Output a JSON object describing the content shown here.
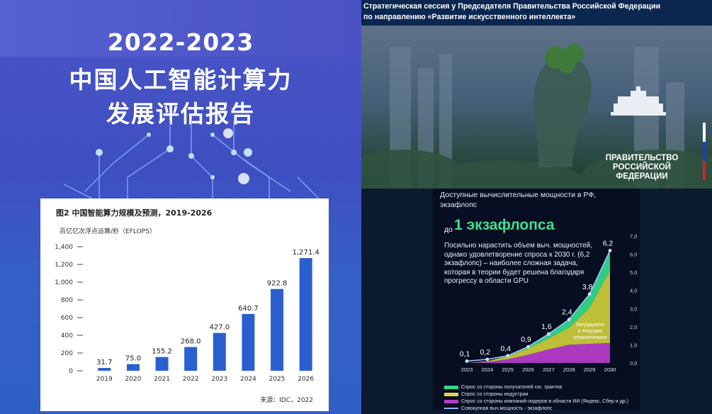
{
  "left_report": {
    "year": "2022-2023",
    "title_line1": "中国人工智能计算力",
    "title_line2": "发展评估报告",
    "figure_title": "图2  中国智能算力规模及预测，2019-2026",
    "unit": "百亿亿次浮点运算/秒（EFLOPS）",
    "source": "来源：IDC，2022"
  },
  "right_slide": {
    "header_line1": "Стратегическая сессия у Председателя Правительства Российской Федерации",
    "header_line2": "по направлению «Развитие искусственного интеллекта»",
    "gov_line1": "ПРАВИТЕЛЬСТВО",
    "gov_line2": "РОССИЙСКОЙ",
    "gov_line3": "ФЕДЕРАЦИИ",
    "panel_title1": "Доступные вычислительные мощности в РФ,",
    "panel_title2": "экзафлопс",
    "prefix": "до",
    "headline": "1 экзафлопса",
    "description": "Посильно нарастить объем выч. мощностей, однако удовлетворение спроса к 2030 г. (6,2 экзафлопс) – наиболее сложная задача, которая в теории будет решена благодаря прогрессу в области GPU",
    "annotation": [
      "Затруднено",
      "в текущих",
      "ограничениях"
    ],
    "legend": [
      {
        "label": "Спрос со стороны получателей гос. грантов",
        "color": "#2fd88a"
      },
      {
        "label": "Спрос со стороны индустрии",
        "color": "#e6d24a"
      },
      {
        "label": "Спрос со стороны компаний-лидеров в области ИИ (Яндекс, Сбер и др.)",
        "color": "#b43cc8"
      },
      {
        "label": "Совокупная выч.мощность - экзафлопс",
        "color": "#8fb4ff"
      }
    ]
  },
  "chart_data": [
    {
      "type": "bar",
      "title": "图2  中国智能算力规模及预测，2019-2026",
      "ylabel": "百亿亿次浮点运算/秒（EFLOPS）",
      "categories": [
        "2019",
        "2020",
        "2021",
        "2022",
        "2023",
        "2024",
        "2025",
        "2026"
      ],
      "values": [
        31.7,
        75.0,
        155.2,
        268.0,
        427.0,
        640.7,
        922.8,
        1271.4
      ],
      "value_labels": [
        "31.7",
        "75.0",
        "155.2",
        "268.0",
        "427.0",
        "640.7",
        "922.8",
        "1,271.4"
      ],
      "ylim": [
        0,
        1400
      ],
      "yticks": [
        0,
        200,
        400,
        600,
        800,
        1000,
        1200,
        1400
      ],
      "ytick_labels": [
        "0",
        "200",
        "400",
        "600",
        "800",
        "1,000",
        "1,200",
        "1,400"
      ],
      "bar_color": "#2a5fcf"
    },
    {
      "type": "area",
      "title": "Доступные вычислительные мощности в РФ, экзафлопс",
      "ylabel": "экзафлопс",
      "x": [
        "2023",
        "2024",
        "2025",
        "2026",
        "2027",
        "2028",
        "2029",
        "2030"
      ],
      "ylim": [
        0,
        7.0
      ],
      "yticks": [
        0,
        1,
        2,
        3,
        4,
        5,
        6,
        7
      ],
      "ytick_labels": [
        "0,0",
        "1,0",
        "2,0",
        "3,0",
        "4,0",
        "5,0",
        "6,0",
        "7,0"
      ],
      "series": [
        {
          "name": "Совокупная выч.мощность - экзафлопс",
          "type": "line",
          "values": [
            0.1,
            0.2,
            0.4,
            0.9,
            1.6,
            2.4,
            3.8,
            6.2
          ],
          "labels": [
            "0,1",
            "0,2",
            "0,4",
            "0,9",
            "1,6",
            "2,4",
            "3,8",
            "6,2"
          ]
        },
        {
          "name": "Спрос со стороны компаний-лидеров в области ИИ (Яндекс, Сбер и др.)",
          "values": [
            0.0,
            0.05,
            0.2,
            0.45,
            0.75,
            1.0,
            1.05,
            1.1
          ]
        },
        {
          "name": "Спрос со стороны индустрии",
          "values": [
            0.0,
            0.05,
            0.15,
            0.35,
            0.6,
            0.95,
            2.0,
            4.0
          ]
        },
        {
          "name": "Спрос со стороны получателей гос. грантов",
          "values": [
            0.0,
            0.0,
            0.05,
            0.1,
            0.25,
            0.45,
            0.75,
            1.1
          ]
        }
      ]
    }
  ]
}
